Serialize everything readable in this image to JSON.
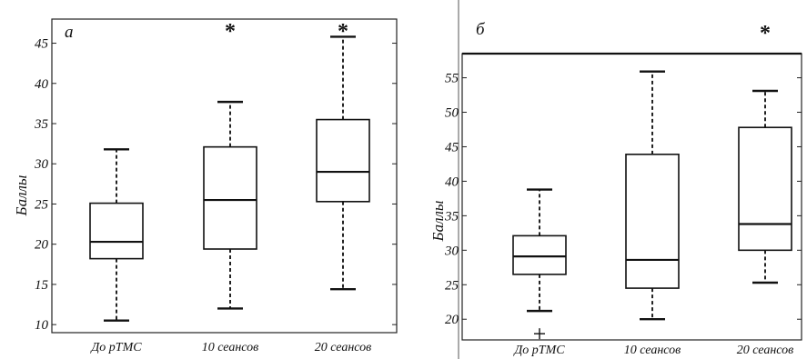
{
  "chart_data": [
    {
      "type": "box",
      "panel_label": "а",
      "ylabel": "Баллы",
      "ylim": [
        9,
        48
      ],
      "yticks": [
        10,
        15,
        20,
        25,
        30,
        35,
        40,
        45
      ],
      "categories": [
        "До рТМС",
        "10 сеансов",
        "20 сеансов"
      ],
      "boxes": [
        {
          "whisker_low": 10.5,
          "q1": 18.2,
          "median": 20.3,
          "q3": 25.1,
          "whisker_high": 31.8,
          "outliers": [],
          "star": ""
        },
        {
          "whisker_low": 12.0,
          "q1": 19.4,
          "median": 25.5,
          "q3": 32.1,
          "whisker_high": 37.7,
          "outliers": [],
          "star": "*"
        },
        {
          "whisker_low": 14.4,
          "q1": 25.3,
          "median": 29.0,
          "q3": 35.5,
          "whisker_high": 45.8,
          "outliers": [],
          "star": "*"
        }
      ]
    },
    {
      "type": "box",
      "panel_label": "б",
      "ylabel": "Баллы",
      "ylim": [
        17,
        58.5
      ],
      "yticks": [
        20,
        25,
        30,
        35,
        40,
        45,
        50,
        55
      ],
      "categories": [
        "До рТМС",
        "10 сеансов",
        "20 сеансов"
      ],
      "boxes": [
        {
          "whisker_low": 21.2,
          "q1": 26.5,
          "median": 29.1,
          "q3": 32.1,
          "whisker_high": 38.8,
          "outliers": [
            17.9
          ],
          "star": ""
        },
        {
          "whisker_low": 20.0,
          "q1": 24.5,
          "median": 28.6,
          "q3": 43.9,
          "whisker_high": 55.9,
          "outliers": [],
          "star": ""
        },
        {
          "whisker_low": 25.3,
          "q1": 30.0,
          "median": 33.8,
          "q3": 47.8,
          "whisker_high": 53.1,
          "outliers": [],
          "star": "*"
        }
      ]
    }
  ]
}
